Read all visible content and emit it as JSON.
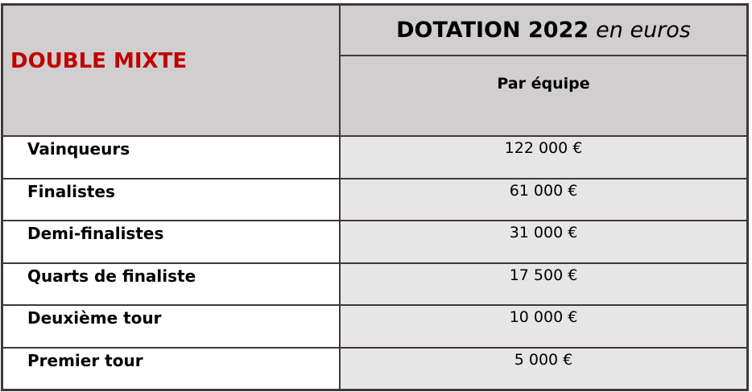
{
  "colors": {
    "border": "#3f3836",
    "header_background": "#d0cece",
    "value_cell_background": "#e7e6e6",
    "label_cell_background": "#ffffff",
    "category_title_red": "#c00000",
    "text": "#000000"
  },
  "table": {
    "category_title": "DOUBLE MIXTE",
    "header_title_bold": "DOTATION 2022",
    "header_title_italic": "en euros",
    "subheader": "Par équipe",
    "rows": [
      {
        "label": "Vainqueurs",
        "value": "122 000 €"
      },
      {
        "label": "Finalistes",
        "value": "61 000 €"
      },
      {
        "label": "Demi-finalistes",
        "value": "31 000 €"
      },
      {
        "label": "Quarts de finaliste",
        "value": "17 500 €"
      },
      {
        "label": "Deuxième tour",
        "value": "10 000 €"
      },
      {
        "label": "Premier tour",
        "value": "5 000 €"
      }
    ]
  }
}
